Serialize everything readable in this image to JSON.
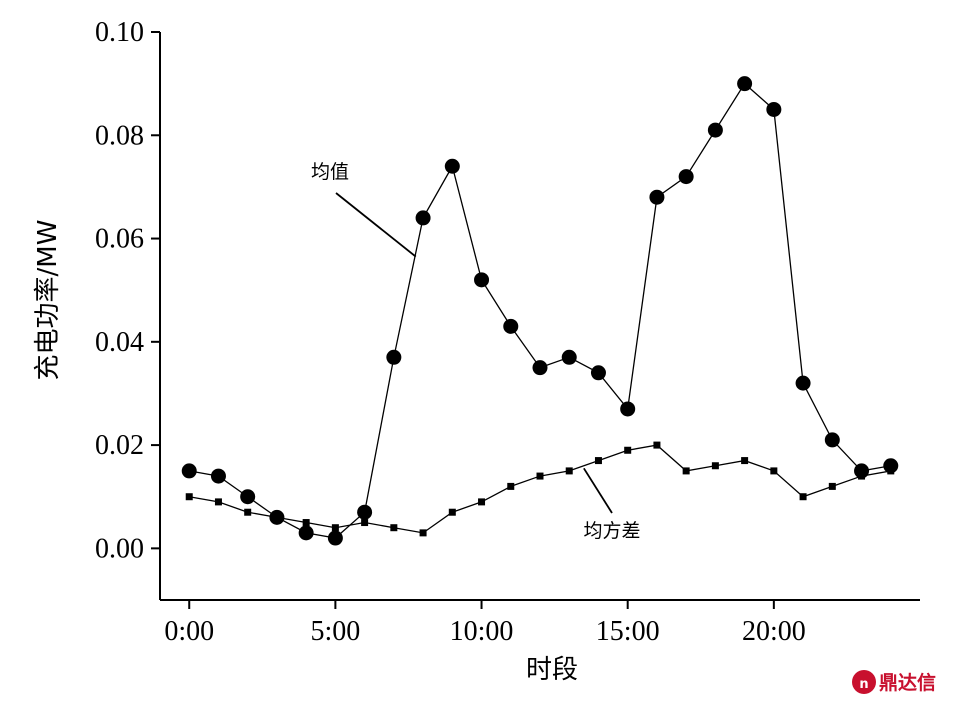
{
  "chart_data": {
    "type": "line",
    "xlabel": "时段",
    "ylabel": "充电功率/MW",
    "xlim": [
      -1,
      25
    ],
    "ylim": [
      -0.01,
      0.1
    ],
    "x_ticks": [
      {
        "value": 0,
        "label": "0:00"
      },
      {
        "value": 5,
        "label": "5:00"
      },
      {
        "value": 10,
        "label": "10:00"
      },
      {
        "value": 15,
        "label": "15:00"
      },
      {
        "value": 20,
        "label": "20:00"
      }
    ],
    "y_ticks": [
      {
        "value": 0.0,
        "label": "0.00"
      },
      {
        "value": 0.02,
        "label": "0.02"
      },
      {
        "value": 0.04,
        "label": "0.04"
      },
      {
        "value": 0.06,
        "label": "0.06"
      },
      {
        "value": 0.08,
        "label": "0.08"
      },
      {
        "value": 0.1,
        "label": "0.10"
      }
    ],
    "grid": false,
    "x": [
      0,
      1,
      2,
      3,
      4,
      5,
      6,
      7,
      8,
      9,
      10,
      11,
      12,
      13,
      14,
      15,
      16,
      17,
      18,
      19,
      20,
      21,
      22,
      23,
      24
    ],
    "series": [
      {
        "name": "均值",
        "marker": "circle",
        "values": [
          0.015,
          0.014,
          0.01,
          0.006,
          0.003,
          0.002,
          0.007,
          0.037,
          0.064,
          0.074,
          0.052,
          0.043,
          0.035,
          0.037,
          0.034,
          0.027,
          0.068,
          0.072,
          0.081,
          0.09,
          0.085,
          0.032,
          0.021,
          0.015,
          0.016
        ]
      },
      {
        "name": "均方差",
        "marker": "square",
        "values": [
          0.01,
          0.009,
          0.007,
          0.006,
          0.005,
          0.004,
          0.005,
          0.004,
          0.003,
          0.007,
          0.009,
          0.012,
          0.014,
          0.015,
          0.017,
          0.019,
          0.02,
          0.015,
          0.016,
          0.017,
          0.015,
          0.01,
          0.012,
          0.014,
          0.015
        ]
      }
    ],
    "annotations": [
      {
        "text": "均值",
        "series": 0,
        "point": {
          "x": 7.75,
          "y": 0.0565
        }
      },
      {
        "text": "均方差",
        "series": 1,
        "point": {
          "x": 13.5,
          "y": 0.0155
        }
      }
    ]
  },
  "watermark": {
    "text": "鼎达信",
    "color": "#c8102e"
  }
}
